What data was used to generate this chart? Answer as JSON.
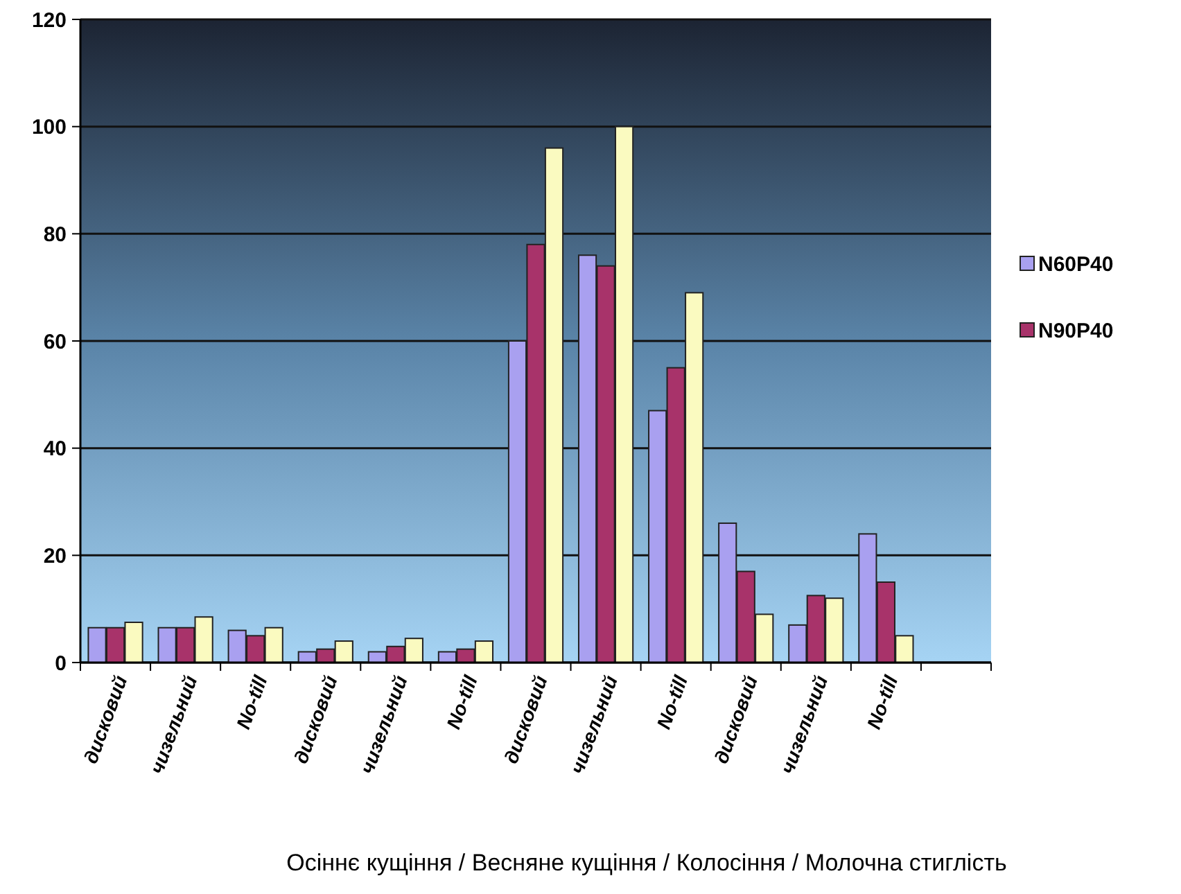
{
  "chart_data": {
    "type": "bar",
    "xlabel": "Осіннє кущіння / Весняне кущіння / Колосіння / Молочна стиглість",
    "categories": [
      "дисковий",
      "чизельний",
      "No-till",
      "дисковий",
      "чизельний",
      "No-till",
      "дисковий",
      "чизельний",
      "No-till",
      "дисковий",
      "чизельний",
      "No-till",
      null
    ],
    "series": [
      {
        "name": "N60P40",
        "color": "#a9a0f0",
        "values": [
          6.5,
          6.5,
          6,
          2,
          2,
          2,
          60,
          76,
          47,
          26,
          7,
          24,
          null
        ]
      },
      {
        "name": "N90P40",
        "color": "#a8336a",
        "values": [
          6.5,
          6.5,
          5,
          2.5,
          3,
          2.5,
          78,
          74,
          55,
          17,
          12.5,
          15,
          null
        ]
      },
      {
        "color": "#fafac0",
        "values": [
          7.5,
          8.5,
          6.5,
          4,
          4.5,
          4,
          96,
          100,
          69,
          9,
          12,
          5,
          null
        ]
      }
    ],
    "ylim": [
      0,
      120
    ],
    "yticks": [
      0,
      20,
      40,
      60,
      80,
      100,
      120
    ],
    "grid": "y",
    "legend": "right"
  }
}
